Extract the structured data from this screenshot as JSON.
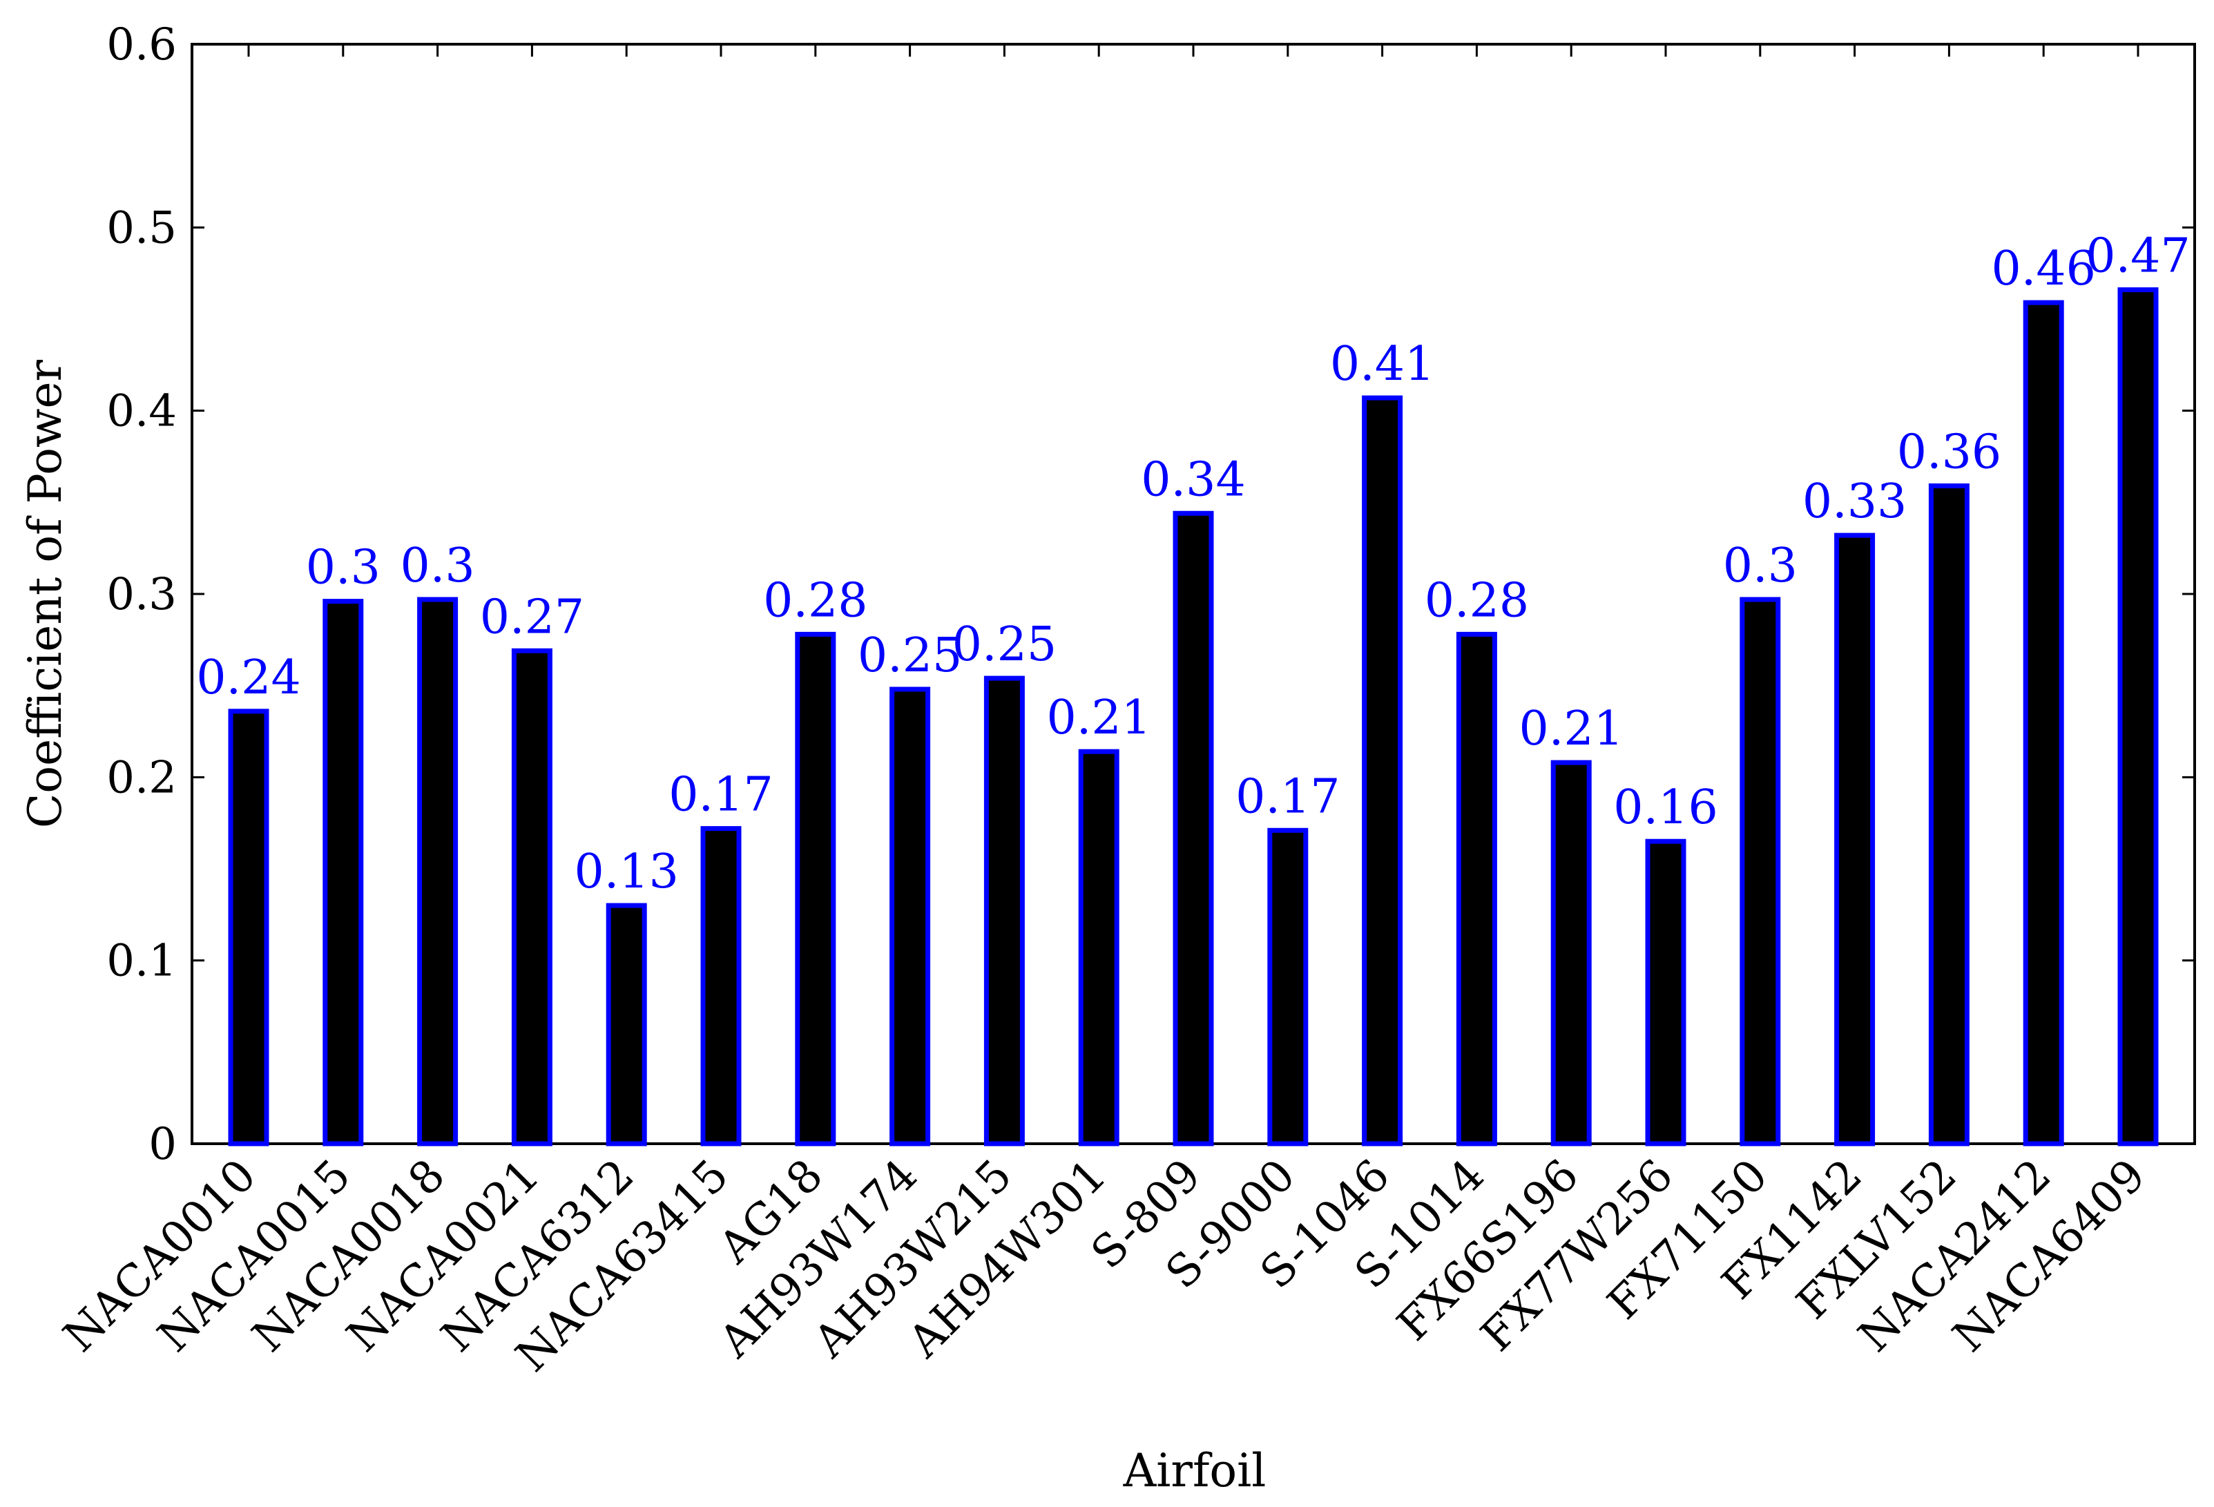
{
  "chart_data": {
    "type": "bar",
    "xlabel": "Airfoil",
    "ylabel": "Coefficient of Power",
    "ylim": [
      0,
      0.6
    ],
    "yticks": [
      "0",
      "0.1",
      "0.2",
      "0.3",
      "0.4",
      "0.5",
      "0.6"
    ],
    "grid": false,
    "categories": [
      "NACA0010",
      "NACA0015",
      "NACA0018",
      "NACA0021",
      "NACA6312",
      "NACA63415",
      "AG18",
      "AH93W174",
      "AH93W215",
      "AH94W301",
      "S-809",
      "S-9000",
      "S-1046",
      "S-1014",
      "FX66S196",
      "FX77W256",
      "FX71150",
      "FX1142",
      "FXLV152",
      "NACA2412",
      "NACA6409"
    ],
    "values": [
      0.236,
      0.296,
      0.297,
      0.269,
      0.13,
      0.172,
      0.278,
      0.248,
      0.254,
      0.214,
      0.344,
      0.171,
      0.407,
      0.278,
      0.208,
      0.165,
      0.297,
      0.332,
      0.359,
      0.459,
      0.466
    ],
    "data_labels": [
      "0.24",
      "0.3",
      "0.3",
      "0.27",
      "0.13",
      "0.17",
      "0.28",
      "0.25",
      "0.25",
      "0.21",
      "0.34",
      "0.17",
      "0.41",
      "0.28",
      "0.21",
      "0.16",
      "0.3",
      "0.33",
      "0.36",
      "0.46",
      "0.47"
    ],
    "bar_fill": "#000000",
    "bar_edge": "#0000ff",
    "label_color": "#0000ff"
  }
}
